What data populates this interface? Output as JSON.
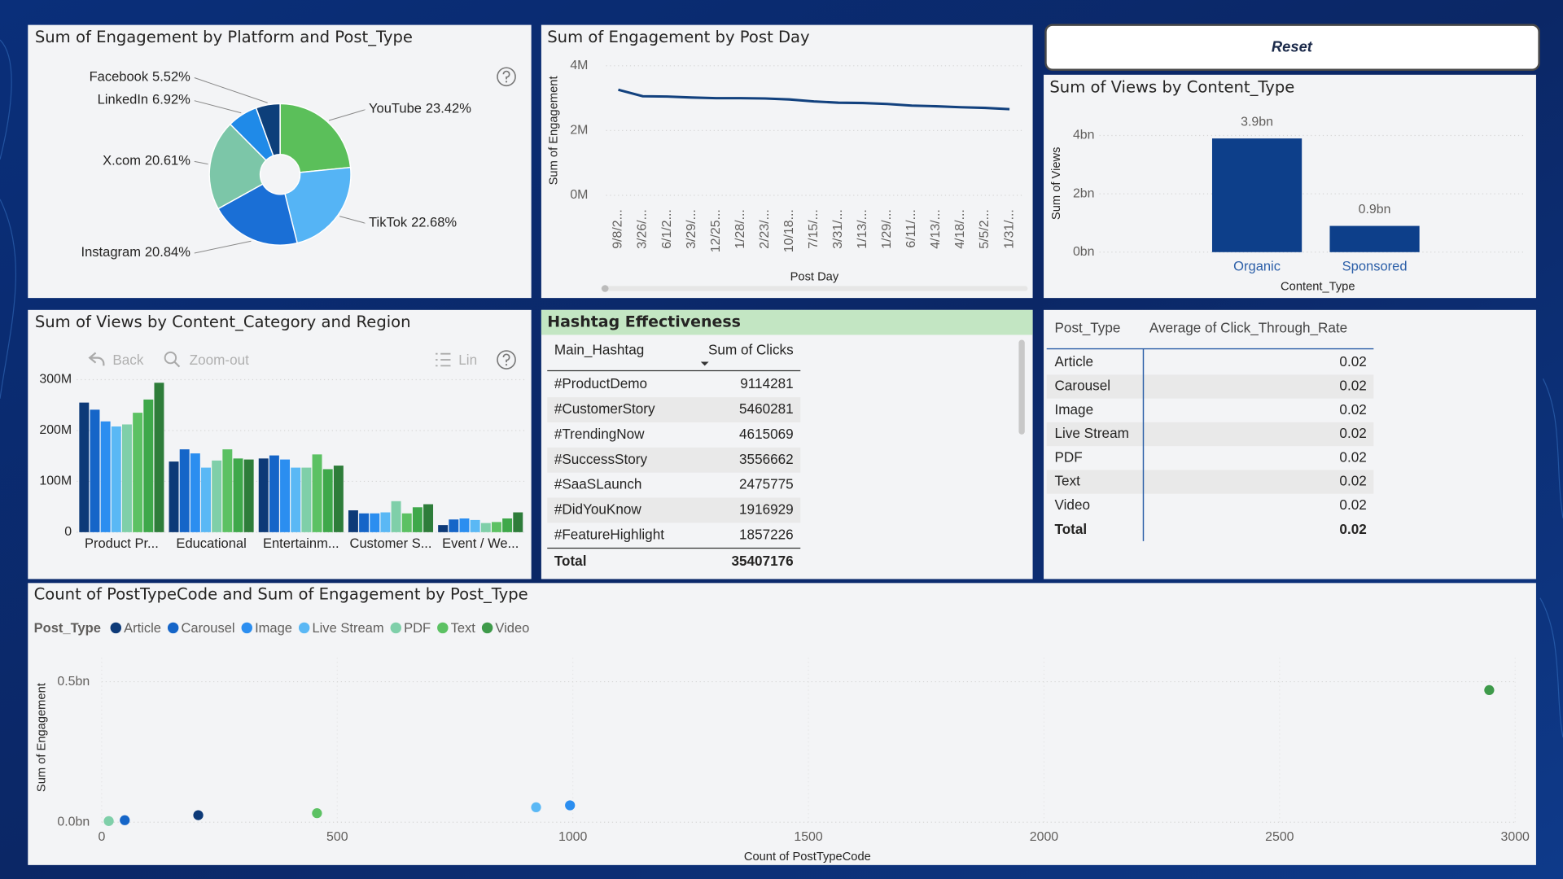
{
  "reset_button": "Reset",
  "chart_data": [
    {
      "type": "pie",
      "title": "Sum of Engagement by Platform and Post_Type",
      "categories": [
        "YouTube",
        "TikTok",
        "Instagram",
        "X.com",
        "LinkedIn",
        "Facebook"
      ],
      "values": [
        23.42,
        22.68,
        20.84,
        20.61,
        6.92,
        5.52
      ],
      "value_labels": [
        "23.42%",
        "22.68%",
        "20.84%",
        "20.61%",
        "6.92%",
        "5.52%"
      ],
      "colors": [
        "#5bbf5a",
        "#55b4f5",
        "#1a6fd6",
        "#7cc6a8",
        "#1f8ae8",
        "#0d3f7a"
      ],
      "donut": true
    },
    {
      "type": "line",
      "title": "Sum of Engagement by Post Day",
      "x_label": "Post Day",
      "y_label": "Sum of Engagement",
      "categories": [
        "9/8/2...",
        "3/26/...",
        "6/1/2...",
        "3/29/...",
        "12/25...",
        "1/28/...",
        "2/23/...",
        "10/18...",
        "7/15/...",
        "3/31/...",
        "1/13/...",
        "1/29/...",
        "6/11/...",
        "4/13/...",
        "4/18/...",
        "5/5/2...",
        "1/31/..."
      ],
      "values": [
        3260000,
        3060000,
        3050000,
        3020000,
        3000000,
        3000000,
        2990000,
        2960000,
        2900000,
        2860000,
        2850000,
        2820000,
        2770000,
        2750000,
        2720000,
        2700000,
        2660000
      ],
      "color": "#12417e",
      "ylim": [
        0,
        4600000
      ],
      "yticks": [
        {
          "value": 0,
          "label": "0M"
        },
        {
          "value": 2000000,
          "label": "2M"
        },
        {
          "value": 4000000,
          "label": "4M"
        }
      ],
      "grid": true
    },
    {
      "type": "bar",
      "title": "Sum of Views by Content_Type",
      "x_label": "Content_Type",
      "y_label": "Sum of Views",
      "categories": [
        "Organic",
        "Sponsored"
      ],
      "values": [
        3900000000,
        900000000
      ],
      "value_labels": [
        "3.9bn",
        "0.9bn"
      ],
      "color": "#0d3f8a",
      "ylim": [
        0,
        4600000000
      ],
      "yticks": [
        {
          "value": 0,
          "label": "0bn"
        },
        {
          "value": 2000000000,
          "label": "2bn"
        },
        {
          "value": 4000000000,
          "label": "4bn"
        }
      ],
      "grid": true
    },
    {
      "type": "grouped_bar",
      "title": "Sum of Views by Content_Category and Region",
      "toolbar": [
        "Back",
        "Zoom-out",
        "Lin"
      ],
      "categories": [
        "Product Pr...",
        "Educational",
        "Entertainm...",
        "Customer S...",
        "Event / We..."
      ],
      "series": [
        {
          "color": "#0d3a78",
          "values": [
            255000000,
            139000000,
            145000000,
            43000000,
            14000000
          ]
        },
        {
          "color": "#1565c8",
          "values": [
            241000000,
            163000000,
            151000000,
            37000000,
            25000000
          ]
        },
        {
          "color": "#2b8ef0",
          "values": [
            218000000,
            155000000,
            143000000,
            37000000,
            27000000
          ]
        },
        {
          "color": "#5ab8f5",
          "values": [
            208000000,
            127000000,
            127000000,
            39000000,
            24000000
          ]
        },
        {
          "color": "#7fcfa9",
          "values": [
            212000000,
            141000000,
            127000000,
            61000000,
            18000000
          ]
        },
        {
          "color": "#5cc163",
          "values": [
            235000000,
            163000000,
            153000000,
            37000000,
            20000000
          ]
        },
        {
          "color": "#3ea84a",
          "values": [
            261000000,
            145000000,
            124000000,
            49000000,
            27000000
          ]
        },
        {
          "color": "#2e7d3a",
          "values": [
            294000000,
            143000000,
            131000000,
            55000000,
            39000000
          ]
        }
      ],
      "ylim": [
        0,
        310000000
      ],
      "yticks": [
        0,
        {
          "value": 100000000,
          "label": "100M"
        },
        {
          "value": 200000000,
          "label": "200M"
        },
        {
          "value": 300000000,
          "label": "300M"
        }
      ],
      "grid": true
    },
    {
      "type": "scatter",
      "title": "Count of PostTypeCode and Sum of Engagement by Post_Type",
      "legend_title": "Post_Type",
      "legend": "top-left",
      "x_label": "Count of PostTypeCode",
      "y_label": "Sum of Engagement",
      "series": [
        {
          "name": "Article",
          "color": "#0d3a78",
          "x": [
            205
          ],
          "values": [
            25000000
          ]
        },
        {
          "name": "Carousel",
          "color": "#1565c8",
          "x": [
            49
          ],
          "values": [
            7000000
          ]
        },
        {
          "name": "Image",
          "color": "#2b8ef0",
          "x": [
            994
          ],
          "values": [
            60000000
          ]
        },
        {
          "name": "Live Stream",
          "color": "#5ab8f5",
          "x": [
            922
          ],
          "values": [
            53000000
          ]
        },
        {
          "name": "PDF",
          "color": "#7fcfa9",
          "x": [
            15
          ],
          "values": [
            4000000
          ]
        },
        {
          "name": "Text",
          "color": "#5cc163",
          "x": [
            457
          ],
          "values": [
            32000000
          ]
        },
        {
          "name": "Video",
          "color": "#3e9a4a",
          "x": [
            2945
          ],
          "values": [
            470000000
          ]
        }
      ],
      "xlim": [
        0,
        3000
      ],
      "xticks": [
        0,
        500,
        1000,
        1500,
        2000,
        2500,
        3000
      ],
      "ylim": [
        0,
        585000000
      ],
      "yticks": [
        {
          "value": 0,
          "label": "0.0bn"
        },
        {
          "value": 500000000,
          "label": "0.5bn"
        }
      ],
      "grid": true
    }
  ],
  "hashtag_table": {
    "title": "Hashtag Effectiveness",
    "columns": [
      "Main_Hashtag",
      "Sum of Clicks"
    ],
    "rows": [
      [
        "#ProductDemo",
        9114281
      ],
      [
        "#CustomerStory",
        5460281
      ],
      [
        "#TrendingNow",
        4615069
      ],
      [
        "#SuccessStory",
        3556662
      ],
      [
        "#SaaSLaunch",
        2475775
      ],
      [
        "#DidYouKnow",
        1916929
      ],
      [
        "#FeatureHighlight",
        1857226
      ]
    ],
    "total": [
      "Total",
      35407176
    ]
  },
  "ctr_table": {
    "columns": [
      "Post_Type",
      "Average of Click_Through_Rate"
    ],
    "rows": [
      [
        "Article",
        0.02
      ],
      [
        "Carousel",
        0.02
      ],
      [
        "Image",
        0.02
      ],
      [
        "Live Stream",
        0.02
      ],
      [
        "PDF",
        0.02
      ],
      [
        "Text",
        0.02
      ],
      [
        "Video",
        0.02
      ]
    ],
    "total": [
      "Total",
      0.02
    ]
  }
}
